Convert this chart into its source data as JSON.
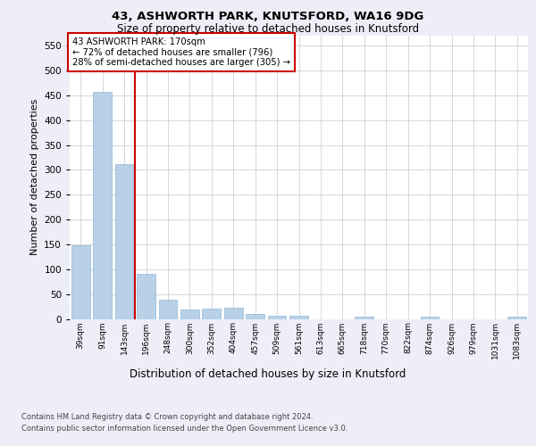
{
  "title1": "43, ASHWORTH PARK, KNUTSFORD, WA16 9DG",
  "title2": "Size of property relative to detached houses in Knutsford",
  "xlabel": "Distribution of detached houses by size in Knutsford",
  "ylabel": "Number of detached properties",
  "footer1": "Contains HM Land Registry data © Crown copyright and database right 2024.",
  "footer2": "Contains public sector information licensed under the Open Government Licence v3.0.",
  "categories": [
    "39sqm",
    "91sqm",
    "143sqm",
    "196sqm",
    "248sqm",
    "300sqm",
    "352sqm",
    "404sqm",
    "457sqm",
    "509sqm",
    "561sqm",
    "613sqm",
    "665sqm",
    "718sqm",
    "770sqm",
    "822sqm",
    "874sqm",
    "926sqm",
    "979sqm",
    "1031sqm",
    "1083sqm"
  ],
  "values": [
    148,
    457,
    312,
    91,
    38,
    19,
    20,
    22,
    9,
    6,
    6,
    0,
    0,
    4,
    0,
    0,
    4,
    0,
    0,
    0,
    4
  ],
  "bar_color": "#b8d0e8",
  "bar_edge_color": "#90b8d8",
  "grid_color": "#d0d0d8",
  "annotation_line1": "43 ASHWORTH PARK: 170sqm",
  "annotation_line2": "← 72% of detached houses are smaller (796)",
  "annotation_line3": "28% of semi-detached houses are larger (305) →",
  "vline_index": 2.5,
  "vline_color": "#cc0000",
  "annotation_box_edge_color": "#cc0000",
  "ylim_max": 570,
  "yticks": [
    0,
    50,
    100,
    150,
    200,
    250,
    300,
    350,
    400,
    450,
    500,
    550
  ],
  "bg_color": "#eeeef8",
  "plot_bg_color": "#ffffff"
}
